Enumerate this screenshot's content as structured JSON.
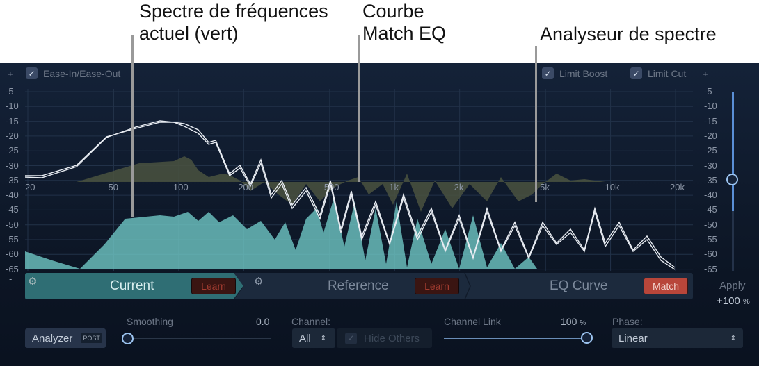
{
  "callouts": [
    "Spectre de fréquences\nactuel (vert)",
    "Courbe\nMatch EQ",
    "Analyseur de spectre"
  ],
  "top": {
    "ease_label": "Ease-In/Ease-Out",
    "ease_checked": true,
    "limit_boost_label": "Limit Boost",
    "limit_boost_checked": true,
    "limit_cut_label": "Limit Cut",
    "limit_cut_checked": true,
    "plus": "+",
    "minus": "-"
  },
  "db_ticks": [
    "-5",
    "-10",
    "-15",
    "-20",
    "-25",
    "-30",
    "-35",
    "-40",
    "-45",
    "-50",
    "-55",
    "-60",
    "-65"
  ],
  "freq_ticks": [
    "20",
    "50",
    "100",
    "200",
    "500",
    "1k",
    "2k",
    "5k",
    "10k",
    "20k"
  ],
  "tabs": [
    {
      "label": "Current",
      "button": "Learn"
    },
    {
      "label": "Reference",
      "button": "Learn"
    },
    {
      "label": "EQ Curve",
      "button": "Match"
    }
  ],
  "apply": {
    "label": "Apply",
    "value": "+100",
    "unit": "%",
    "percent": 100
  },
  "controls": {
    "analyzer": "Analyzer",
    "post": "POST",
    "smoothing_label": "Smoothing",
    "smoothing_value": "0.0",
    "channel_label": "Channel:",
    "channel_value": "All",
    "hide_others": "Hide Others",
    "channel_link_label": "Channel Link",
    "channel_link_value": "100",
    "channel_link_unit": "%",
    "phase_label": "Phase:",
    "phase_value": "Linear"
  },
  "colors": {
    "current": "#2f6e74",
    "match": "#b8463a",
    "spectrum": "#6fc7c4"
  }
}
